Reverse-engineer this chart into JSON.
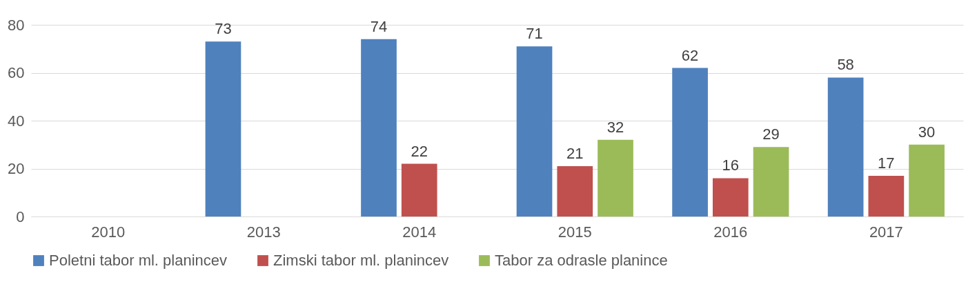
{
  "chart_data": {
    "type": "bar",
    "categories": [
      "2010",
      "2013",
      "2014",
      "2015",
      "2016",
      "2017"
    ],
    "series": [
      {
        "name": "Poletni tabor ml. planincev",
        "color": "#4f81bd",
        "values": [
          null,
          73,
          74,
          71,
          62,
          58
        ]
      },
      {
        "name": "Zimski tabor ml. planincev",
        "color": "#c0504d",
        "values": [
          null,
          null,
          22,
          21,
          16,
          17
        ]
      },
      {
        "name": "Tabor za odrasle planince",
        "color": "#9bbb59",
        "values": [
          null,
          null,
          null,
          32,
          29,
          30
        ]
      }
    ],
    "ylim": [
      0,
      80
    ],
    "yticks": [
      0,
      20,
      40,
      60,
      80
    ],
    "grid": "y",
    "legend": "bottom",
    "data_labels": true
  }
}
